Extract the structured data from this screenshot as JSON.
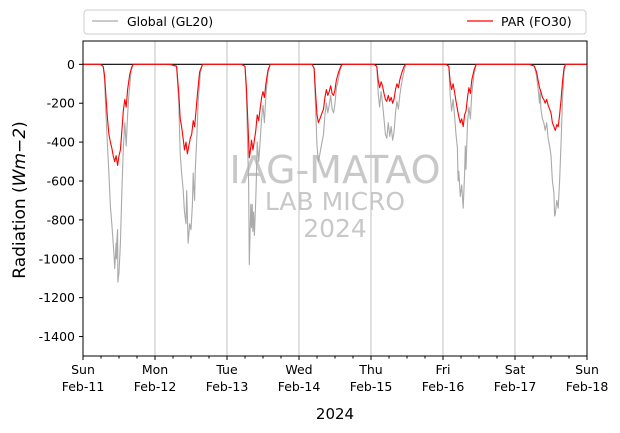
{
  "chart_data": {
    "type": "line",
    "xlabel": "2024",
    "ylabel_main": "Radiation (",
    "ylabel_math": "Wm−2",
    "ylabel_end": ")",
    "ylim": [
      -1500,
      120
    ],
    "yticks": [
      0,
      -200,
      -400,
      -600,
      -800,
      -1000,
      -1200,
      -1400
    ],
    "xlim": [
      "2024-02-11",
      "2024-02-18"
    ],
    "xticks": [
      {
        "day": 0,
        "line1": "Sun",
        "line2": "Feb-11"
      },
      {
        "day": 1,
        "line1": "Mon",
        "line2": "Feb-12"
      },
      {
        "day": 2,
        "line1": "Tue",
        "line2": "Feb-13"
      },
      {
        "day": 3,
        "line1": "Wed",
        "line2": "Feb-14"
      },
      {
        "day": 4,
        "line1": "Thu",
        "line2": "Feb-15"
      },
      {
        "day": 5,
        "line1": "Fri",
        "line2": "Feb-16"
      },
      {
        "day": 6,
        "line1": "Sat",
        "line2": "Feb-17"
      },
      {
        "day": 7,
        "line1": "Sun",
        "line2": "Feb-18"
      }
    ],
    "grid": "vertical at day boundaries",
    "zero_line": true,
    "legend_position": "top, outside plot",
    "series": [
      {
        "name": "Global (GL20)",
        "color": "#aaaaaa",
        "points": [
          [
            0.0,
            0
          ],
          [
            0.24,
            0
          ],
          [
            0.28,
            -10
          ],
          [
            0.3,
            -80
          ],
          [
            0.32,
            -260
          ],
          [
            0.34,
            -420
          ],
          [
            0.36,
            -560
          ],
          [
            0.38,
            -730
          ],
          [
            0.4,
            -820
          ],
          [
            0.42,
            -920
          ],
          [
            0.43,
            -980
          ],
          [
            0.44,
            -1050
          ],
          [
            0.45,
            -990
          ],
          [
            0.46,
            -920
          ],
          [
            0.465,
            -1000
          ],
          [
            0.47,
            -910
          ],
          [
            0.48,
            -850
          ],
          [
            0.485,
            -1120
          ],
          [
            0.5,
            -1070
          ],
          [
            0.52,
            -920
          ],
          [
            0.54,
            -650
          ],
          [
            0.56,
            -430
          ],
          [
            0.58,
            -300
          ],
          [
            0.6,
            -420
          ],
          [
            0.62,
            -260
          ],
          [
            0.64,
            -140
          ],
          [
            0.67,
            -30
          ],
          [
            0.7,
            0
          ],
          [
            1.21,
            0
          ],
          [
            1.3,
            -10
          ],
          [
            1.33,
            -200
          ],
          [
            1.35,
            -460
          ],
          [
            1.37,
            -560
          ],
          [
            1.39,
            -640
          ],
          [
            1.41,
            -760
          ],
          [
            1.43,
            -820
          ],
          [
            1.44,
            -650
          ],
          [
            1.45,
            -780
          ],
          [
            1.46,
            -920
          ],
          [
            1.47,
            -880
          ],
          [
            1.48,
            -820
          ],
          [
            1.5,
            -850
          ],
          [
            1.52,
            -720
          ],
          [
            1.53,
            -560
          ],
          [
            1.54,
            -640
          ],
          [
            1.55,
            -700
          ],
          [
            1.56,
            -540
          ],
          [
            1.58,
            -380
          ],
          [
            1.6,
            -190
          ],
          [
            1.63,
            -40
          ],
          [
            1.66,
            0
          ],
          [
            2.2,
            0
          ],
          [
            2.25,
            -10
          ],
          [
            2.27,
            -150
          ],
          [
            2.29,
            -470
          ],
          [
            2.3,
            -600
          ],
          [
            2.31,
            -1030
          ],
          [
            2.32,
            -880
          ],
          [
            2.33,
            -720
          ],
          [
            2.34,
            -840
          ],
          [
            2.35,
            -720
          ],
          [
            2.36,
            -860
          ],
          [
            2.37,
            -760
          ],
          [
            2.38,
            -880
          ],
          [
            2.4,
            -690
          ],
          [
            2.41,
            -560
          ],
          [
            2.42,
            -400
          ],
          [
            2.44,
            -500
          ],
          [
            2.46,
            -400
          ],
          [
            2.48,
            -280
          ],
          [
            2.5,
            -210
          ],
          [
            2.52,
            -300
          ],
          [
            2.54,
            -160
          ],
          [
            2.57,
            -40
          ],
          [
            2.6,
            0
          ],
          [
            3.18,
            0
          ],
          [
            3.21,
            -20
          ],
          [
            3.23,
            -220
          ],
          [
            3.25,
            -420
          ],
          [
            3.27,
            -500
          ],
          [
            3.29,
            -460
          ],
          [
            3.31,
            -420
          ],
          [
            3.34,
            -360
          ],
          [
            3.36,
            -260
          ],
          [
            3.38,
            -200
          ],
          [
            3.4,
            -250
          ],
          [
            3.42,
            -210
          ],
          [
            3.44,
            -160
          ],
          [
            3.46,
            -230
          ],
          [
            3.48,
            -250
          ],
          [
            3.5,
            -200
          ],
          [
            3.52,
            -120
          ],
          [
            3.54,
            -90
          ],
          [
            3.57,
            -30
          ],
          [
            3.6,
            0
          ],
          [
            4.04,
            0
          ],
          [
            4.08,
            -10
          ],
          [
            4.1,
            -150
          ],
          [
            4.12,
            -220
          ],
          [
            4.14,
            -140
          ],
          [
            4.16,
            -200
          ],
          [
            4.18,
            -280
          ],
          [
            4.2,
            -360
          ],
          [
            4.22,
            -380
          ],
          [
            4.24,
            -300
          ],
          [
            4.26,
            -370
          ],
          [
            4.28,
            -320
          ],
          [
            4.3,
            -390
          ],
          [
            4.32,
            -350
          ],
          [
            4.34,
            -250
          ],
          [
            4.36,
            -190
          ],
          [
            4.38,
            -230
          ],
          [
            4.4,
            -160
          ],
          [
            4.42,
            -110
          ],
          [
            4.45,
            -50
          ],
          [
            4.48,
            0
          ],
          [
            5.04,
            0
          ],
          [
            5.08,
            -10
          ],
          [
            5.1,
            -160
          ],
          [
            5.12,
            -240
          ],
          [
            5.14,
            -180
          ],
          [
            5.16,
            -260
          ],
          [
            5.18,
            -360
          ],
          [
            5.2,
            -430
          ],
          [
            5.21,
            -600
          ],
          [
            5.22,
            -550
          ],
          [
            5.24,
            -680
          ],
          [
            5.26,
            -620
          ],
          [
            5.28,
            -740
          ],
          [
            5.3,
            -560
          ],
          [
            5.31,
            -420
          ],
          [
            5.32,
            -540
          ],
          [
            5.34,
            -300
          ],
          [
            5.36,
            -220
          ],
          [
            5.38,
            -280
          ],
          [
            5.4,
            -150
          ],
          [
            5.43,
            -50
          ],
          [
            5.46,
            0
          ],
          [
            6.2,
            0
          ],
          [
            6.27,
            -10
          ],
          [
            6.3,
            -60
          ],
          [
            6.32,
            -120
          ],
          [
            6.34,
            -200
          ],
          [
            6.35,
            -130
          ],
          [
            6.36,
            -230
          ],
          [
            6.38,
            -280
          ],
          [
            6.4,
            -300
          ],
          [
            6.42,
            -340
          ],
          [
            6.44,
            -300
          ],
          [
            6.46,
            -380
          ],
          [
            6.48,
            -420
          ],
          [
            6.5,
            -470
          ],
          [
            6.52,
            -600
          ],
          [
            6.54,
            -660
          ],
          [
            6.55,
            -780
          ],
          [
            6.56,
            -770
          ],
          [
            6.58,
            -700
          ],
          [
            6.6,
            -740
          ],
          [
            6.62,
            -600
          ],
          [
            6.64,
            -400
          ],
          [
            6.66,
            -180
          ],
          [
            6.68,
            -40
          ],
          [
            6.7,
            0
          ],
          [
            7.0,
            0
          ]
        ]
      },
      {
        "name": "PAR (FO30)",
        "color": "#ff0000",
        "points": [
          [
            0.0,
            0
          ],
          [
            0.24,
            0
          ],
          [
            0.28,
            -10
          ],
          [
            0.3,
            -60
          ],
          [
            0.32,
            -170
          ],
          [
            0.34,
            -280
          ],
          [
            0.36,
            -360
          ],
          [
            0.38,
            -400
          ],
          [
            0.4,
            -430
          ],
          [
            0.42,
            -470
          ],
          [
            0.44,
            -500
          ],
          [
            0.46,
            -470
          ],
          [
            0.48,
            -520
          ],
          [
            0.5,
            -470
          ],
          [
            0.52,
            -440
          ],
          [
            0.54,
            -340
          ],
          [
            0.56,
            -240
          ],
          [
            0.58,
            -180
          ],
          [
            0.6,
            -220
          ],
          [
            0.62,
            -130
          ],
          [
            0.65,
            -50
          ],
          [
            0.68,
            -10
          ],
          [
            0.7,
            0
          ],
          [
            1.21,
            0
          ],
          [
            1.3,
            -10
          ],
          [
            1.33,
            -150
          ],
          [
            1.35,
            -280
          ],
          [
            1.37,
            -320
          ],
          [
            1.39,
            -380
          ],
          [
            1.41,
            -440
          ],
          [
            1.43,
            -400
          ],
          [
            1.45,
            -460
          ],
          [
            1.47,
            -420
          ],
          [
            1.49,
            -380
          ],
          [
            1.51,
            -360
          ],
          [
            1.53,
            -290
          ],
          [
            1.55,
            -320
          ],
          [
            1.57,
            -240
          ],
          [
            1.59,
            -150
          ],
          [
            1.62,
            -40
          ],
          [
            1.66,
            0
          ],
          [
            2.2,
            0
          ],
          [
            2.25,
            -10
          ],
          [
            2.27,
            -120
          ],
          [
            2.29,
            -300
          ],
          [
            2.31,
            -480
          ],
          [
            2.32,
            -460
          ],
          [
            2.34,
            -390
          ],
          [
            2.36,
            -440
          ],
          [
            2.38,
            -390
          ],
          [
            2.4,
            -340
          ],
          [
            2.42,
            -260
          ],
          [
            2.44,
            -290
          ],
          [
            2.46,
            -230
          ],
          [
            2.48,
            -170
          ],
          [
            2.5,
            -140
          ],
          [
            2.52,
            -170
          ],
          [
            2.54,
            -100
          ],
          [
            2.57,
            -30
          ],
          [
            2.6,
            0
          ],
          [
            3.18,
            0
          ],
          [
            3.21,
            -20
          ],
          [
            3.23,
            -150
          ],
          [
            3.25,
            -260
          ],
          [
            3.27,
            -300
          ],
          [
            3.29,
            -280
          ],
          [
            3.31,
            -260
          ],
          [
            3.34,
            -230
          ],
          [
            3.36,
            -170
          ],
          [
            3.38,
            -130
          ],
          [
            3.4,
            -160
          ],
          [
            3.42,
            -140
          ],
          [
            3.44,
            -110
          ],
          [
            3.46,
            -150
          ],
          [
            3.48,
            -160
          ],
          [
            3.5,
            -130
          ],
          [
            3.52,
            -80
          ],
          [
            3.55,
            -40
          ],
          [
            3.58,
            -10
          ],
          [
            3.6,
            0
          ],
          [
            4.04,
            0
          ],
          [
            4.08,
            -10
          ],
          [
            4.1,
            -80
          ],
          [
            4.12,
            -120
          ],
          [
            4.14,
            -90
          ],
          [
            4.16,
            -110
          ],
          [
            4.18,
            -150
          ],
          [
            4.2,
            -180
          ],
          [
            4.22,
            -190
          ],
          [
            4.24,
            -160
          ],
          [
            4.26,
            -190
          ],
          [
            4.28,
            -170
          ],
          [
            4.3,
            -200
          ],
          [
            4.32,
            -180
          ],
          [
            4.34,
            -130
          ],
          [
            4.36,
            -100
          ],
          [
            4.38,
            -120
          ],
          [
            4.4,
            -80
          ],
          [
            4.43,
            -40
          ],
          [
            4.46,
            -10
          ],
          [
            4.48,
            0
          ],
          [
            5.04,
            0
          ],
          [
            5.08,
            -10
          ],
          [
            5.1,
            -90
          ],
          [
            5.12,
            -130
          ],
          [
            5.14,
            -100
          ],
          [
            5.16,
            -140
          ],
          [
            5.18,
            -190
          ],
          [
            5.2,
            -230
          ],
          [
            5.22,
            -270
          ],
          [
            5.24,
            -300
          ],
          [
            5.26,
            -280
          ],
          [
            5.28,
            -320
          ],
          [
            5.3,
            -260
          ],
          [
            5.32,
            -240
          ],
          [
            5.34,
            -170
          ],
          [
            5.36,
            -120
          ],
          [
            5.38,
            -150
          ],
          [
            5.4,
            -80
          ],
          [
            5.43,
            -30
          ],
          [
            5.46,
            0
          ],
          [
            6.2,
            0
          ],
          [
            6.27,
            -10
          ],
          [
            6.3,
            -40
          ],
          [
            6.32,
            -80
          ],
          [
            6.34,
            -120
          ],
          [
            6.36,
            -140
          ],
          [
            6.38,
            -170
          ],
          [
            6.4,
            -180
          ],
          [
            6.42,
            -200
          ],
          [
            6.44,
            -180
          ],
          [
            6.46,
            -210
          ],
          [
            6.48,
            -230
          ],
          [
            6.5,
            -250
          ],
          [
            6.52,
            -300
          ],
          [
            6.54,
            -320
          ],
          [
            6.56,
            -340
          ],
          [
            6.58,
            -310
          ],
          [
            6.6,
            -320
          ],
          [
            6.62,
            -260
          ],
          [
            6.64,
            -180
          ],
          [
            6.66,
            -90
          ],
          [
            6.68,
            -20
          ],
          [
            6.7,
            0
          ],
          [
            7.0,
            0
          ]
        ]
      }
    ],
    "watermark": [
      "IAG-MATAO",
      "LAB MICRO",
      "2024"
    ]
  }
}
